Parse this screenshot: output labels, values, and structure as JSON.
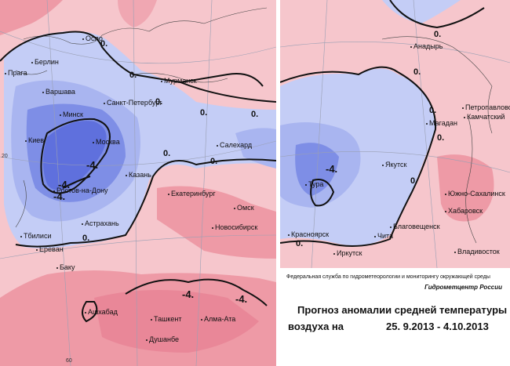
{
  "left_map": {
    "cities": [
      "Осло",
      "Берлин",
      "Прага",
      "Варшава",
      "Мурманск",
      "Санкт-Петербург",
      "Минск",
      "Киев",
      "Москва",
      "Салехард",
      "Казань",
      "Ростов-на-Дону",
      "Екатеринбург",
      "Омск",
      "Астрахань",
      "Новосибирск",
      "Тбилиси",
      "Ереван",
      "Баку",
      "Ашхабад",
      "Ташкент",
      "Алма-Ата",
      "Душанбе"
    ],
    "isolines": [
      "0.",
      "0.",
      "0.",
      "0.",
      "0.",
      "0.",
      "-4.",
      "-4.",
      "-4.",
      "0.",
      "0.",
      "-4.",
      "-4."
    ],
    "grid_labels": [
      "20",
      "60"
    ]
  },
  "right_map": {
    "cities": [
      "Анадырь",
      "Петропавловск",
      "Камчатский",
      "Магадан",
      "Якутск",
      "Тура",
      "Южно-Сахалинск",
      "Хабаровск",
      "Благовещенск",
      "Красноярск",
      "Чита",
      "Иркутск",
      "Владивосток"
    ],
    "isolines": [
      "0.",
      "0.",
      "0.",
      "0.",
      "-4.",
      "0.",
      "0."
    ]
  },
  "caption": {
    "agency": "Федеральная служба по гидрометеорологии и мониторингу окружающей среды",
    "center": "Гидрометцентр России",
    "title_line1": "Прогноз аномалии средней температуры",
    "title_line2": "воздуха на",
    "period": "25. 9.2013 -  4.10.2013"
  },
  "colors": {
    "warm": "#f6c6cc",
    "warm_strong": "#ee9aa6",
    "cold_light": "#c4cdf6",
    "cold": "#a9b5f0",
    "cold_strong": "#7e8ee6",
    "cold_deep": "#5f70dd",
    "isoline": "#111111"
  }
}
